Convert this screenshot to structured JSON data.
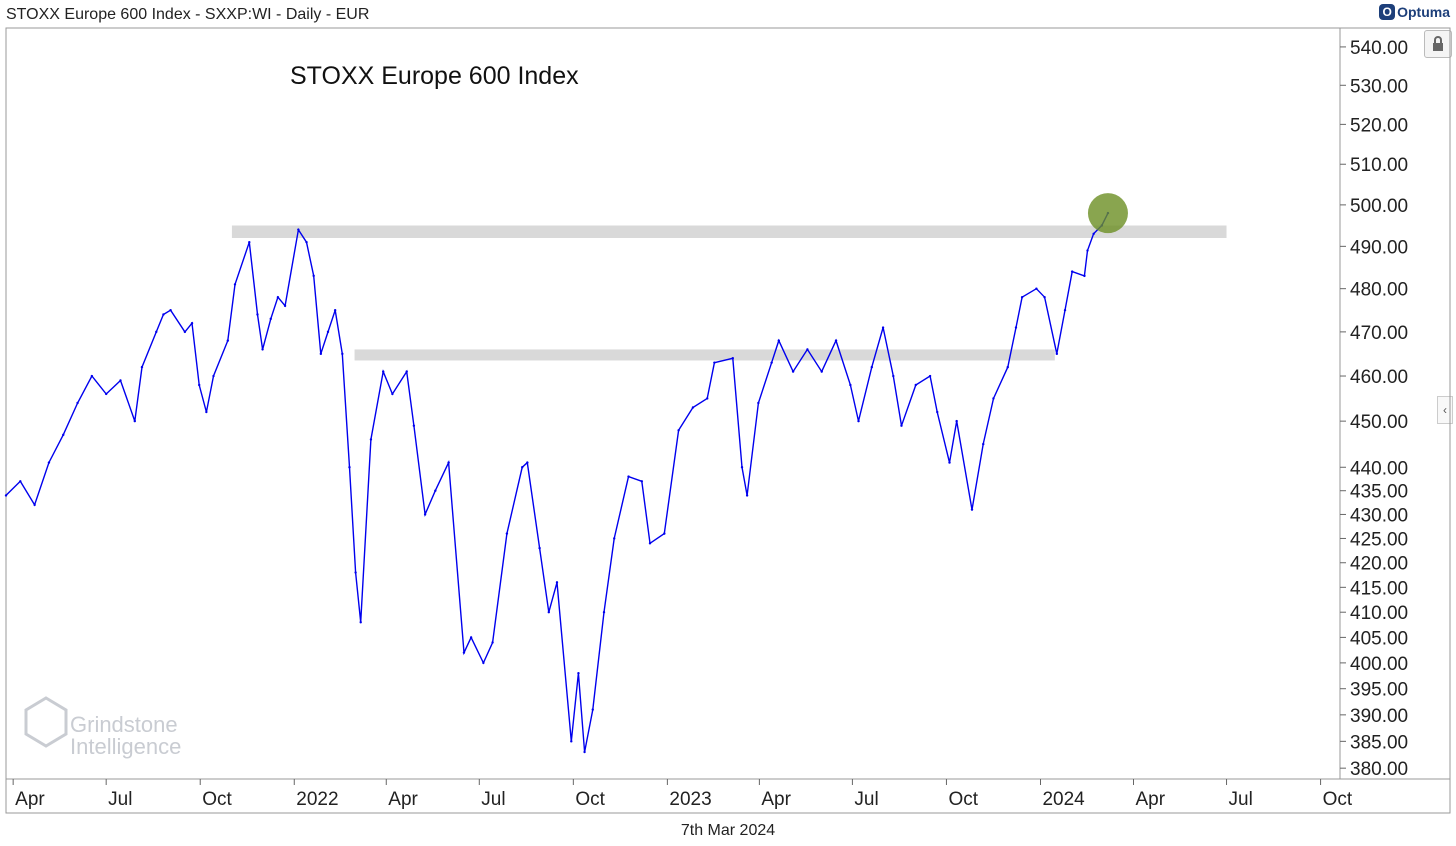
{
  "header": {
    "title": "STOXX Europe 600 Index - SXXP:WI - Daily - EUR"
  },
  "brand": {
    "name": "Optuma"
  },
  "footer": {
    "date": "7th Mar 2024"
  },
  "watermark": {
    "line1": "Grindstone",
    "line2": "Intelligence"
  },
  "colors": {
    "series": "#0000ee",
    "band": "#d9d9d9",
    "highlight": "#6b8e23"
  },
  "chart_data": {
    "type": "line",
    "title": "STOXX Europe 600 Index",
    "y_scale": "log",
    "ylim": [
      378,
      545
    ],
    "x_range": [
      "2021-03-25",
      "2024-10-20"
    ],
    "yticks": [
      "540.00",
      "530.00",
      "520.00",
      "510.00",
      "500.00",
      "490.00",
      "480.00",
      "470.00",
      "460.00",
      "450.00",
      "440.00",
      "435.00",
      "430.00",
      "425.00",
      "420.00",
      "415.00",
      "410.00",
      "405.00",
      "400.00",
      "395.00",
      "390.00",
      "385.00",
      "380.00"
    ],
    "xticks": [
      {
        "date": "2021-04-01",
        "label": "Apr"
      },
      {
        "date": "2021-07-01",
        "label": "Jul"
      },
      {
        "date": "2021-10-01",
        "label": "Oct"
      },
      {
        "date": "2022-01-01",
        "label": "2022"
      },
      {
        "date": "2022-04-01",
        "label": "Apr"
      },
      {
        "date": "2022-07-01",
        "label": "Jul"
      },
      {
        "date": "2022-10-01",
        "label": "Oct"
      },
      {
        "date": "2023-01-01",
        "label": "2023"
      },
      {
        "date": "2023-04-01",
        "label": "Apr"
      },
      {
        "date": "2023-07-01",
        "label": "Jul"
      },
      {
        "date": "2023-10-01",
        "label": "Oct"
      },
      {
        "date": "2024-01-01",
        "label": "2024"
      },
      {
        "date": "2024-04-01",
        "label": "Apr"
      },
      {
        "date": "2024-07-01",
        "label": "Jul"
      },
      {
        "date": "2024-10-01",
        "label": "Oct"
      }
    ],
    "resistance_bands": [
      {
        "from": "2021-11-01",
        "to": "2024-07-01",
        "y_low": 492,
        "y_high": 495
      },
      {
        "from": "2022-03-01",
        "to": "2024-01-15",
        "y_low": 463.5,
        "y_high": 466
      }
    ],
    "highlight_point": {
      "date": "2024-03-07",
      "value": 498
    },
    "series": [
      {
        "values": [
          [
            "2021-03-25",
            434
          ],
          [
            "2021-04-08",
            437
          ],
          [
            "2021-04-22",
            432
          ],
          [
            "2021-05-06",
            441
          ],
          [
            "2021-05-20",
            447
          ],
          [
            "2021-06-03",
            454
          ],
          [
            "2021-06-17",
            460
          ],
          [
            "2021-07-01",
            456
          ],
          [
            "2021-07-15",
            459
          ],
          [
            "2021-07-29",
            450
          ],
          [
            "2021-08-05",
            462
          ],
          [
            "2021-08-19",
            470
          ],
          [
            "2021-08-26",
            474
          ],
          [
            "2021-09-02",
            475
          ],
          [
            "2021-09-16",
            470
          ],
          [
            "2021-09-23",
            472
          ],
          [
            "2021-09-30",
            458
          ],
          [
            "2021-10-07",
            452
          ],
          [
            "2021-10-14",
            460
          ],
          [
            "2021-10-28",
            468
          ],
          [
            "2021-11-04",
            481
          ],
          [
            "2021-11-18",
            491
          ],
          [
            "2021-11-26",
            474
          ],
          [
            "2021-12-01",
            466
          ],
          [
            "2021-12-09",
            473
          ],
          [
            "2021-12-16",
            478
          ],
          [
            "2021-12-23",
            476
          ],
          [
            "2022-01-05",
            494
          ],
          [
            "2022-01-13",
            491
          ],
          [
            "2022-01-20",
            483
          ],
          [
            "2022-01-27",
            465
          ],
          [
            "2022-02-03",
            470
          ],
          [
            "2022-02-10",
            475
          ],
          [
            "2022-02-17",
            465
          ],
          [
            "2022-02-24",
            440
          ],
          [
            "2022-03-02",
            418
          ],
          [
            "2022-03-07",
            408
          ],
          [
            "2022-03-17",
            446
          ],
          [
            "2022-03-29",
            461
          ],
          [
            "2022-04-07",
            456
          ],
          [
            "2022-04-21",
            461
          ],
          [
            "2022-04-28",
            449
          ],
          [
            "2022-05-09",
            430
          ],
          [
            "2022-05-19",
            435
          ],
          [
            "2022-06-01",
            441
          ],
          [
            "2022-06-16",
            402
          ],
          [
            "2022-06-23",
            405
          ],
          [
            "2022-07-05",
            400
          ],
          [
            "2022-07-14",
            404
          ],
          [
            "2022-07-28",
            426
          ],
          [
            "2022-08-12",
            440
          ],
          [
            "2022-08-17",
            441
          ],
          [
            "2022-08-29",
            423
          ],
          [
            "2022-09-07",
            410
          ],
          [
            "2022-09-15",
            416
          ],
          [
            "2022-09-29",
            385
          ],
          [
            "2022-10-06",
            398
          ],
          [
            "2022-10-12",
            383
          ],
          [
            "2022-10-20",
            391
          ],
          [
            "2022-10-31",
            410
          ],
          [
            "2022-11-10",
            425
          ],
          [
            "2022-11-24",
            438
          ],
          [
            "2022-12-07",
            437
          ],
          [
            "2022-12-15",
            424
          ],
          [
            "2022-12-29",
            426
          ],
          [
            "2023-01-12",
            448
          ],
          [
            "2023-01-26",
            453
          ],
          [
            "2023-02-09",
            455
          ],
          [
            "2023-02-16",
            463
          ],
          [
            "2023-03-06",
            464
          ],
          [
            "2023-03-15",
            440
          ],
          [
            "2023-03-20",
            434
          ],
          [
            "2023-03-31",
            454
          ],
          [
            "2023-04-13",
            463
          ],
          [
            "2023-04-20",
            468
          ],
          [
            "2023-05-04",
            461
          ],
          [
            "2023-05-18",
            466
          ],
          [
            "2023-06-01",
            461
          ],
          [
            "2023-06-15",
            468
          ],
          [
            "2023-06-29",
            458
          ],
          [
            "2023-07-07",
            450
          ],
          [
            "2023-07-20",
            462
          ],
          [
            "2023-07-31",
            471
          ],
          [
            "2023-08-10",
            460
          ],
          [
            "2023-08-18",
            449
          ],
          [
            "2023-09-01",
            458
          ],
          [
            "2023-09-15",
            460
          ],
          [
            "2023-09-22",
            452
          ],
          [
            "2023-10-04",
            441
          ],
          [
            "2023-10-11",
            450
          ],
          [
            "2023-10-26",
            431
          ],
          [
            "2023-11-06",
            445
          ],
          [
            "2023-11-16",
            455
          ],
          [
            "2023-11-30",
            462
          ],
          [
            "2023-12-08",
            471
          ],
          [
            "2023-12-14",
            478
          ],
          [
            "2023-12-28",
            480
          ],
          [
            "2024-01-05",
            478
          ],
          [
            "2024-01-17",
            465
          ],
          [
            "2024-01-25",
            475
          ],
          [
            "2024-02-01",
            484
          ],
          [
            "2024-02-13",
            483
          ],
          [
            "2024-02-16",
            489
          ],
          [
            "2024-02-22",
            493
          ],
          [
            "2024-03-01",
            495
          ],
          [
            "2024-03-07",
            498
          ]
        ]
      }
    ]
  }
}
